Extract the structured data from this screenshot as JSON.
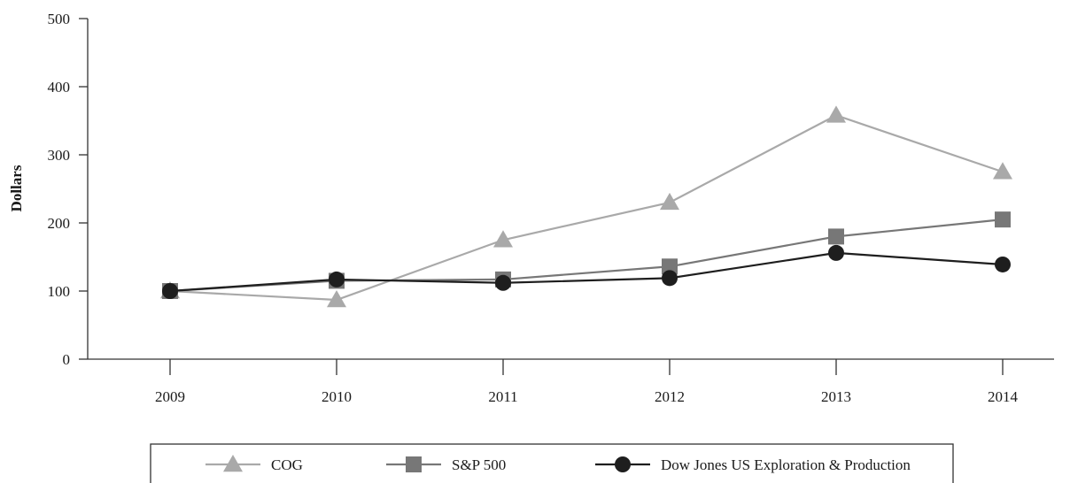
{
  "chart_data": {
    "type": "line",
    "title": "",
    "xlabel": "",
    "ylabel": "Dollars",
    "x": [
      "2009",
      "2010",
      "2011",
      "2012",
      "2013",
      "2014"
    ],
    "ylim": [
      0,
      500
    ],
    "yticks": [
      0,
      100,
      200,
      300,
      400,
      500
    ],
    "grid": false,
    "legend_position": "bottom",
    "series": [
      {
        "name": "COG",
        "marker": "triangle",
        "color": "#a9a9a9",
        "values": [
          100,
          87,
          175,
          230,
          358,
          275
        ]
      },
      {
        "name": "S&P 500",
        "marker": "square",
        "color": "#777777",
        "values": [
          100,
          115,
          117,
          136,
          180,
          205
        ]
      },
      {
        "name": "Dow Jones US Exploration & Production",
        "marker": "circle",
        "color": "#1e1e1e",
        "values": [
          100,
          117,
          112,
          119,
          156,
          139
        ]
      }
    ]
  }
}
